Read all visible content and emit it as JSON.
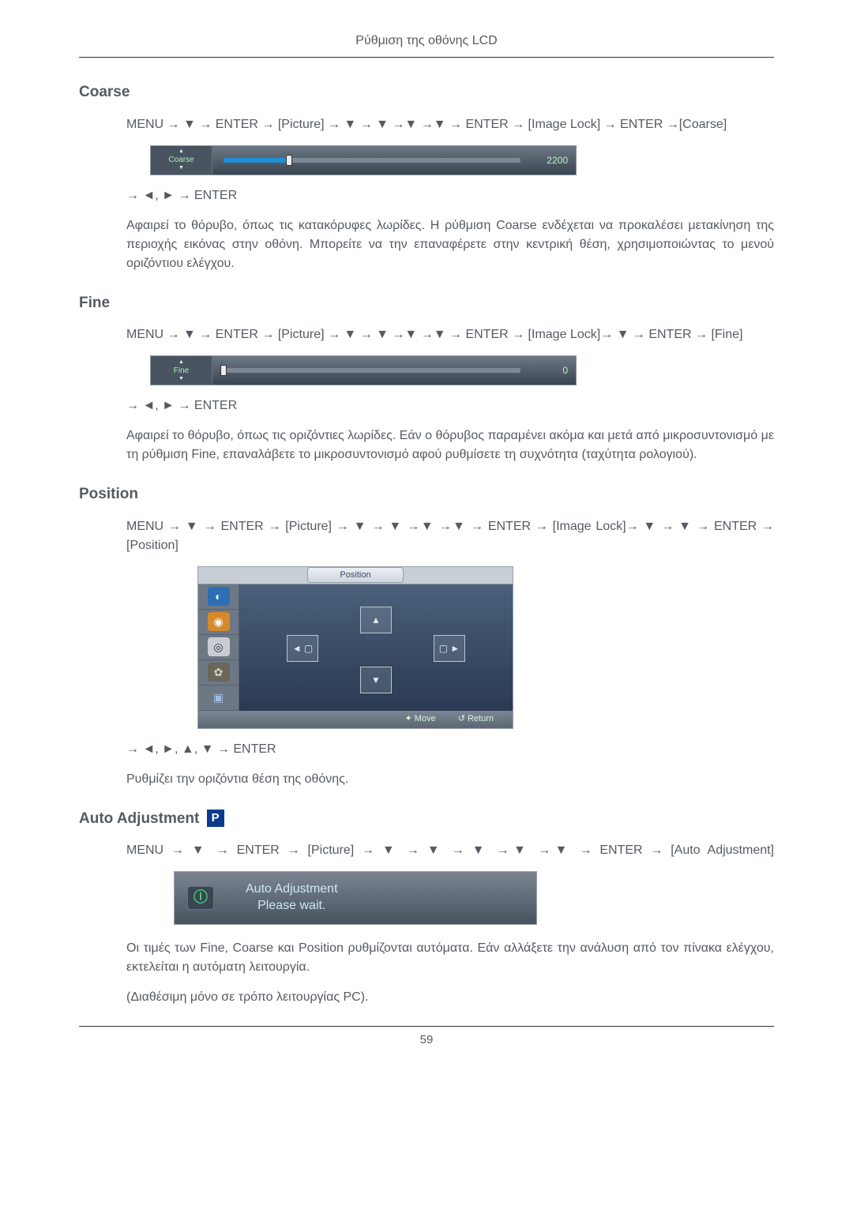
{
  "page": {
    "header_title": "Ρύθμιση της οθόνης LCD",
    "page_number": "59"
  },
  "coarse": {
    "heading": "Coarse",
    "nav1": "MENU → ▼ → ENTER → [Picture] → ▼ → ▼ →▼ →▼ → ENTER → [Image Lock] → ENTER →[Coarse]",
    "osd_label": "Coarse",
    "osd_value": "2200",
    "slider_pct": 22,
    "nav2": "→ ◄, ► → ENTER",
    "body": "Αφαιρεί το θόρυβο, όπως τις κατακόρυφες λωρίδες. Η ρύθμιση Coarse ενδέχεται να προκαλέσει μετακίνηση της περιοχής εικόνας στην οθόνη. Μπορείτε να την επαναφέρετε στην κεντρική θέση, χρησιμοποιώντας το μενού οριζόντιου ελέγχου."
  },
  "fine": {
    "heading": "Fine",
    "nav1": "MENU → ▼ → ENTER → [Picture] → ▼ → ▼ →▼ →▼ → ENTER → [Image Lock]→ ▼ → ENTER → [Fine]",
    "osd_label": "Fine",
    "osd_value": "0",
    "slider_pct": 0,
    "nav2": "→ ◄, ► → ENTER",
    "body": "Αφαιρεί το θόρυβο, όπως τις οριζόντιες λωρίδες. Εάν ο θόρυβος παραμένει ακόμα και μετά από μικροσυντονισμό με τη ρύθμιση Fine, επαναλάβετε το μικροσυντονισμό αφού ρυθμίσετε τη συχνότητα (ταχύτητα ρολογιού)."
  },
  "position": {
    "heading": "Position",
    "nav1": "MENU → ▼ → ENTER → [Picture] → ▼ → ▼ →▼ →▼ → ENTER → [Image Lock]→ ▼ → ▼ → ENTER → [Position]",
    "tab_label": "Position",
    "footer_move": "✦ Move",
    "footer_return": "↺ Return",
    "side_icons": [
      {
        "bg": "#2b6fb4",
        "fg": "#ffffff",
        "glyph": "◐"
      },
      {
        "bg": "#d68a2a",
        "fg": "#ffffff",
        "glyph": "◉"
      },
      {
        "bg": "#c8cdd3",
        "fg": "#333333",
        "glyph": "◎"
      },
      {
        "bg": "#6a665a",
        "fg": "#d6d2c6",
        "glyph": "✿"
      },
      {
        "bg": "#6e7885",
        "fg": "#9fbfe0",
        "glyph": "▣"
      }
    ],
    "nav2": "→ ◄, ►, ▲, ▼ → ENTER",
    "body": "Ρυθμίζει την οριζόντια θέση της οθόνης."
  },
  "auto": {
    "heading": "Auto Adjustment",
    "badge": "P",
    "nav1": "MENU → ▼ → ENTER → [Picture] → ▼ → ▼ → ▼ →▼ →▼ → ENTER → [Auto Adjustment]",
    "msg_line1": "Auto Adjustment",
    "msg_line2": "Please wait.",
    "body1": "Οι τιμές των Fine, Coarse και Position ρυθμίζονται αυτόματα. Εάν αλλάξετε την ανάλυση από τον πίνακα ελέγχου, εκτελείται η αυτόματη λειτουργία.",
    "body2": "(Διαθέσιμη μόνο σε τρόπο λειτουργίας PC)."
  }
}
